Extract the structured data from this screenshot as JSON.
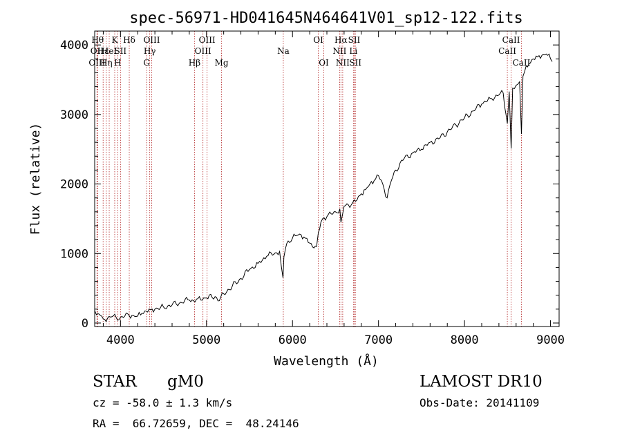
{
  "chart_data": {
    "type": "line",
    "title": "spec-56971-HD041645N464641V01_sp12-122.fits",
    "xlabel": "Wavelength (Å)",
    "ylabel": "Flux (relative)",
    "xlim": [
      3700,
      9100
    ],
    "ylim": [
      -50,
      4200
    ],
    "xticks": [
      4000,
      5000,
      6000,
      7000,
      8000,
      9000
    ],
    "yticks": [
      0,
      1000,
      2000,
      3000,
      4000
    ],
    "grid": false,
    "line_color": "#000000",
    "marker_color": "#b22222",
    "series": [
      {
        "x": [
          3700,
          3720,
          3750,
          3780,
          3800,
          3850,
          3900,
          3950,
          4000,
          4050,
          4100,
          4150,
          4200,
          4250,
          4300,
          4350,
          4400,
          4500,
          4600,
          4700,
          4800,
          4850,
          4900,
          5000,
          5100,
          5150,
          5200,
          5300,
          5400,
          5500,
          5600,
          5700,
          5800,
          5850,
          5890,
          5900,
          5920,
          5950,
          6000,
          6050,
          6100,
          6150,
          6200,
          6250,
          6280,
          6300,
          6330,
          6350,
          6400,
          6450,
          6500,
          6550,
          6563,
          6600,
          6650,
          6700,
          6750,
          6800,
          6850,
          6900,
          6950,
          7000,
          7050,
          7100,
          7150,
          7200,
          7300,
          7400,
          7500,
          7600,
          7700,
          7800,
          7900,
          8000,
          8100,
          8200,
          8300,
          8400,
          8450,
          8498,
          8520,
          8542,
          8560,
          8600,
          8640,
          8662,
          8680,
          8700,
          8750,
          8800,
          8850,
          8900,
          8950,
          9000,
          9020
        ],
        "y": [
          180,
          120,
          130,
          100,
          60,
          70,
          90,
          80,
          80,
          100,
          110,
          110,
          100,
          140,
          170,
          190,
          200,
          230,
          260,
          300,
          330,
          320,
          350,
          360,
          380,
          320,
          420,
          530,
          640,
          770,
          860,
          960,
          1010,
          1030,
          650,
          950,
          1080,
          1180,
          1220,
          1260,
          1270,
          1220,
          1150,
          1080,
          1100,
          1300,
          1450,
          1500,
          1530,
          1570,
          1600,
          1640,
          1450,
          1680,
          1700,
          1730,
          1770,
          1860,
          1920,
          2000,
          2050,
          2120,
          2000,
          1800,
          2050,
          2200,
          2370,
          2450,
          2500,
          2600,
          2650,
          2750,
          2850,
          2950,
          3050,
          3150,
          3230,
          3280,
          3310,
          2870,
          3330,
          2510,
          3380,
          3420,
          3470,
          2720,
          3550,
          3620,
          3730,
          3800,
          3830,
          3850,
          3870,
          3800,
          3760
        ]
      }
    ],
    "line_markers": [
      {
        "x": 3734,
        "label": "Hθ",
        "row": 1
      },
      {
        "x": 3727,
        "label": "OII",
        "row": 2
      },
      {
        "x": 3727,
        "label": "OIII",
        "row": 3
      },
      {
        "x": 3798,
        "label": "Hε",
        "row": 2
      },
      {
        "x": 3835,
        "label": "Hη",
        "row": 3
      },
      {
        "x": 3869,
        "label": "HeI",
        "row": 2
      },
      {
        "x": 3933,
        "label": "K",
        "row": 1
      },
      {
        "x": 3968,
        "label": "H",
        "row": 3
      },
      {
        "x": 4000,
        "label": "SII",
        "row": 2
      },
      {
        "x": 4102,
        "label": "Hδ",
        "row": 1
      },
      {
        "x": 4304,
        "label": "G",
        "row": 3
      },
      {
        "x": 4340,
        "label": "Hγ",
        "row": 2
      },
      {
        "x": 4363,
        "label": "OIII",
        "row": 1
      },
      {
        "x": 4861,
        "label": "Hβ",
        "row": 3
      },
      {
        "x": 4959,
        "label": "OIII",
        "row": 2
      },
      {
        "x": 5007,
        "label": "OIII",
        "row": 1
      },
      {
        "x": 5175,
        "label": "Mg",
        "row": 3
      },
      {
        "x": 5893,
        "label": "Na",
        "row": 2
      },
      {
        "x": 6300,
        "label": "OI",
        "row": 1
      },
      {
        "x": 6364,
        "label": "OI",
        "row": 3
      },
      {
        "x": 6548,
        "label": "NII",
        "row": 2
      },
      {
        "x": 6563,
        "label": "Hα",
        "row": 1
      },
      {
        "x": 6584,
        "label": "NII",
        "row": 3
      },
      {
        "x": 6708,
        "label": "Li",
        "row": 2
      },
      {
        "x": 6717,
        "label": "SII",
        "row": 1
      },
      {
        "x": 6731,
        "label": "SII",
        "row": 3
      },
      {
        "x": 8498,
        "label": "CaII",
        "row": 2
      },
      {
        "x": 8542,
        "label": "CaII",
        "row": 1
      },
      {
        "x": 8662,
        "label": "CaII",
        "row": 3
      }
    ]
  },
  "info": {
    "object_class": "STAR",
    "subclass": "gM0",
    "survey": "LAMOST DR10",
    "cz": "cz = -58.0 ± 1.3 km/s",
    "obs_date": "Obs-Date: 20141109",
    "coords": "RA =  66.72659, DEC =  48.24146"
  }
}
